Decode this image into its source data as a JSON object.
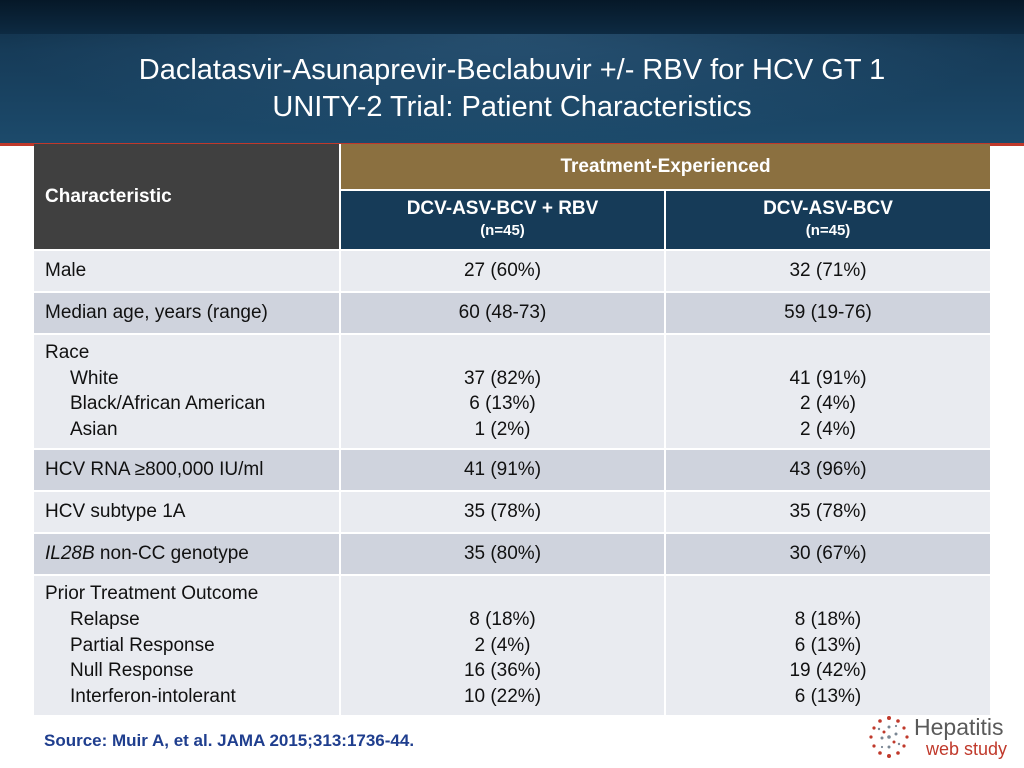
{
  "header": {
    "title_line1": "Daclatasvir-Asunaprevir-Beclabuvir +/- RBV for HCV GT 1",
    "title_line2": "UNITY-2 Trial: Patient Characteristics"
  },
  "table": {
    "characteristic_header": "Characteristic",
    "group_header": "Treatment-Experienced",
    "arms": [
      {
        "name": "DCV-ASV-BCV + RBV",
        "n": "(n=45)"
      },
      {
        "name": "DCV-ASV-BCV",
        "n": "(n=45)"
      }
    ],
    "rows": {
      "male": {
        "label": "Male",
        "v1": "27 (60%)",
        "v2": "32 (71%)"
      },
      "age": {
        "label": "Median age, years (range)",
        "v1": "60 (48-73)",
        "v2": "59 (19-76)"
      },
      "race": {
        "label": "Race",
        "subs": [
          {
            "label": "White",
            "v1": "37 (82%)",
            "v2": "41 (91%)"
          },
          {
            "label": "Black/African American",
            "v1": "6 (13%)",
            "v2": "2 (4%)"
          },
          {
            "label": "Asian",
            "v1": "1 (2%)",
            "v2": "2 (4%)"
          }
        ]
      },
      "rna": {
        "label": "HCV RNA ≥800,000 IU/ml",
        "v1": "41 (91%)",
        "v2": "43 (96%)"
      },
      "subtype": {
        "label": "HCV subtype 1A",
        "v1": "35 (78%)",
        "v2": "35 (78%)"
      },
      "il28b": {
        "label_italic": "IL28B",
        "label_rest": " non-CC genotype",
        "v1": "35 (80%)",
        "v2": "30 (67%)"
      },
      "prior": {
        "label": "Prior Treatment Outcome",
        "subs": [
          {
            "label": "Relapse",
            "v1": "8 (18%)",
            "v2": "8 (18%)"
          },
          {
            "label": "Partial Response",
            "v1": "2 (4%)",
            "v2": "6 (13%)"
          },
          {
            "label": "Null Response",
            "v1": "16 (36%)",
            "v2": "19 (42%)"
          },
          {
            "label": "Interferon-intolerant",
            "v1": "10 (22%)",
            "v2": "6 (13%)"
          }
        ]
      }
    }
  },
  "footer": {
    "source": "Source: Muir A, et al. JAMA 2015;313:1736-44."
  },
  "logo": {
    "brand_line1": "Hepatitis",
    "brand_line2": "web study",
    "color_accent": "#c0392b",
    "color_text": "#5a5a5a"
  },
  "colors": {
    "header_bg": "#163b58",
    "characteristic_bg": "#404040",
    "group_bg": "#8b7040",
    "row_light": "#e9ebf0",
    "row_dark": "#cfd3dd",
    "source_text": "#1f3e8e"
  }
}
